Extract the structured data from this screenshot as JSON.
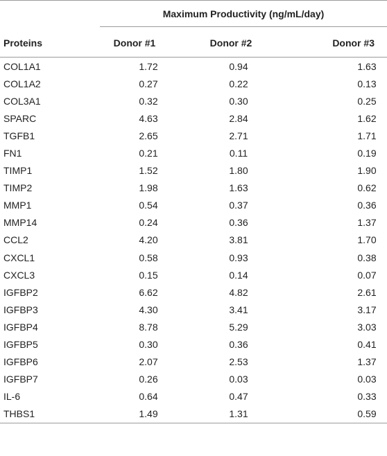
{
  "table": {
    "group_header": "Maximum Productivity (ng/mL/day)",
    "columns": [
      "Proteins",
      "Donor #1",
      "Donor #2",
      "Donor #3"
    ],
    "rows": [
      [
        "COL1A1",
        "1.72",
        "0.94",
        "1.63"
      ],
      [
        "COL1A2",
        "0.27",
        "0.22",
        "0.13"
      ],
      [
        "COL3A1",
        "0.32",
        "0.30",
        "0.25"
      ],
      [
        "SPARC",
        "4.63",
        "2.84",
        "1.62"
      ],
      [
        "TGFB1",
        "2.65",
        "2.71",
        "1.71"
      ],
      [
        "FN1",
        "0.21",
        "0.11",
        "0.19"
      ],
      [
        "TIMP1",
        "1.52",
        "1.80",
        "1.90"
      ],
      [
        "TIMP2",
        "1.98",
        "1.63",
        "0.62"
      ],
      [
        "MMP1",
        "0.54",
        "0.37",
        "0.36"
      ],
      [
        "MMP14",
        "0.24",
        "0.36",
        "1.37"
      ],
      [
        "CCL2",
        "4.20",
        "3.81",
        "1.70"
      ],
      [
        "CXCL1",
        "0.58",
        "0.93",
        "0.38"
      ],
      [
        "CXCL3",
        "0.15",
        "0.14",
        "0.07"
      ],
      [
        "IGFBP2",
        "6.62",
        "4.82",
        "2.61"
      ],
      [
        "IGFBP3",
        "4.30",
        "3.41",
        "3.17"
      ],
      [
        "IGFBP4",
        "8.78",
        "5.29",
        "3.03"
      ],
      [
        "IGFBP5",
        "0.30",
        "0.36",
        "0.41"
      ],
      [
        "IGFBP6",
        "2.07",
        "2.53",
        "1.37"
      ],
      [
        "IGFBP7",
        "0.26",
        "0.03",
        "0.03"
      ],
      [
        "IL-6",
        "0.64",
        "0.47",
        "0.33"
      ],
      [
        "THBS1",
        "1.49",
        "1.31",
        "0.59"
      ]
    ]
  }
}
